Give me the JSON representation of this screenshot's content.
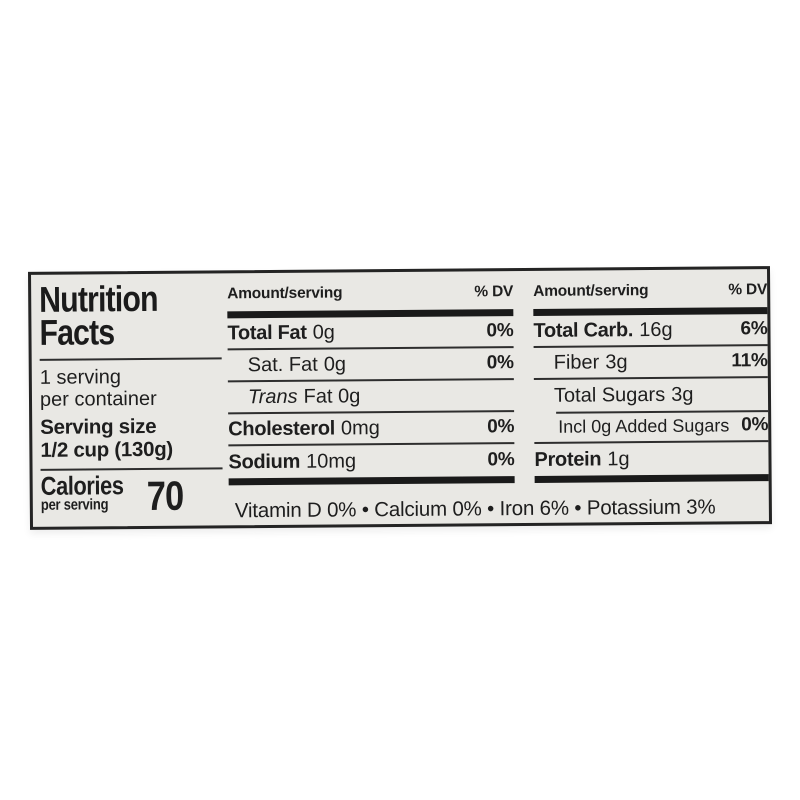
{
  "page": {
    "background": "#ffffff"
  },
  "label": {
    "background": "#e9e8e4",
    "ink": "#1e1e1e",
    "title_line1": "Nutrition",
    "title_line2": "Facts",
    "servings_line1": "1 serving",
    "servings_line2": "per container",
    "serving_size_label": "Serving size",
    "serving_size_value": "1/2 cup (130g)",
    "calories_label": "Calories",
    "calories_sublabel": "per serving",
    "calories_value": "70",
    "columns": [
      {
        "header_amount": "Amount/serving",
        "header_dv": "% DV",
        "rows": [
          {
            "label": "Total Fat",
            "amount": "0g",
            "dv": "0%"
          },
          {
            "label": "Sat. Fat",
            "amount": "0g",
            "dv": "0%"
          },
          {
            "label": "Trans",
            "amount": "Fat 0g",
            "dv": ""
          },
          {
            "label": "Cholesterol",
            "amount": "0mg",
            "dv": "0%"
          },
          {
            "label": "Sodium",
            "amount": "10mg",
            "dv": "0%"
          }
        ]
      },
      {
        "header_amount": "Amount/serving",
        "header_dv": "% DV",
        "rows": [
          {
            "label": "Total Carb.",
            "amount": "16g",
            "dv": "6%"
          },
          {
            "label": "Fiber",
            "amount": "3g",
            "dv": "11%"
          },
          {
            "label": "Total Sugars",
            "amount": "3g",
            "dv": ""
          },
          {
            "label": "Incl 0g Added Sugars",
            "amount": "",
            "dv": "0%"
          },
          {
            "label": "Protein",
            "amount": "1g",
            "dv": ""
          }
        ]
      }
    ],
    "footer": "Vitamin D 0% • Calcium 0% • Iron 6% • Potassium 3%"
  }
}
